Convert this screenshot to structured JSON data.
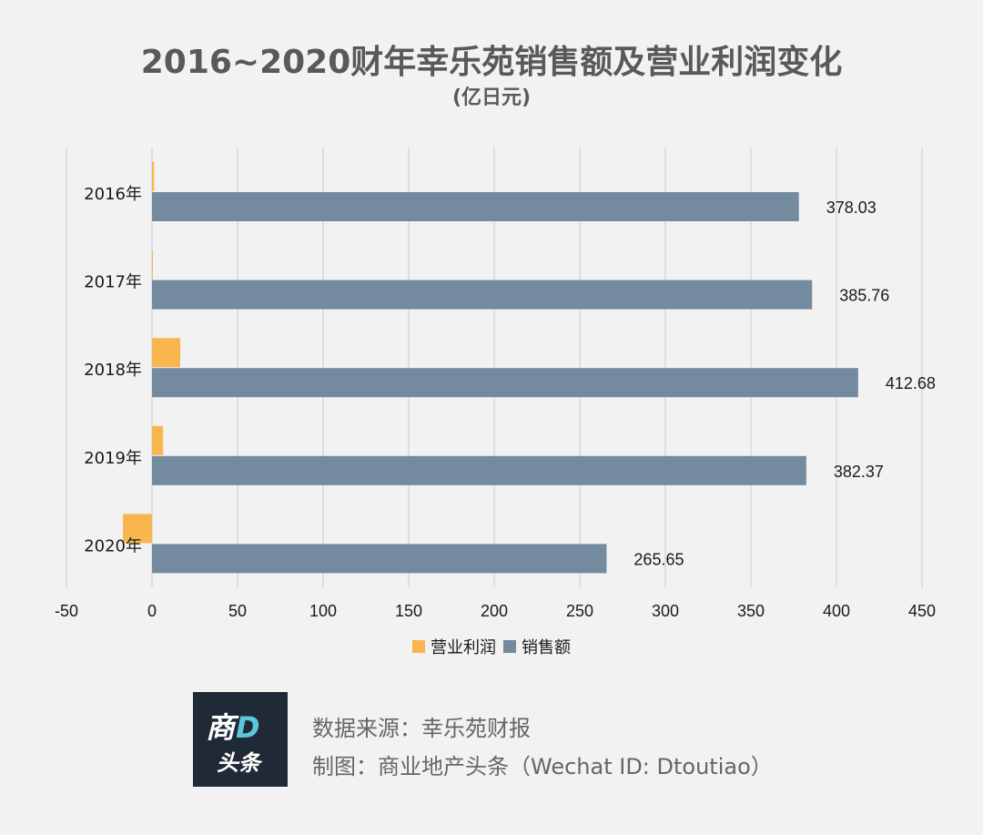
{
  "chart_data": {
    "type": "bar",
    "orientation": "horizontal",
    "title": "2016~2020财年幸乐苑销售额及营业利润变化",
    "subtitle": "(亿日元)",
    "categories": [
      "2016年",
      "2017年",
      "2018年",
      "2019年",
      "2020年"
    ],
    "series": [
      {
        "name": "营业利润",
        "color": "#f9b64e",
        "values": [
          1.2,
          0.5,
          16.5,
          6.5,
          -17.0
        ]
      },
      {
        "name": "销售额",
        "color": "#748a9e",
        "values": [
          378.03,
          385.76,
          412.68,
          382.37,
          265.65
        ]
      }
    ],
    "data_labels": [
      "378.03",
      "385.76",
      "412.68",
      "382.37",
      "265.65"
    ],
    "xlim": [
      -50,
      450
    ],
    "xticks": [
      "-50",
      "0",
      "50",
      "100",
      "150",
      "200",
      "250",
      "300",
      "350",
      "400",
      "450"
    ],
    "xtick_values": [
      -50,
      0,
      50,
      100,
      150,
      200,
      250,
      300,
      350,
      400,
      450
    ],
    "grid": "vertical",
    "legend_position": "bottom"
  },
  "footer": {
    "logo_top": "商",
    "logo_d": "D",
    "logo_bottom": "头条",
    "source": "数据来源：幸乐苑财报",
    "credit": "制图：商业地产头条（Wechat ID: Dtoutiao）"
  }
}
